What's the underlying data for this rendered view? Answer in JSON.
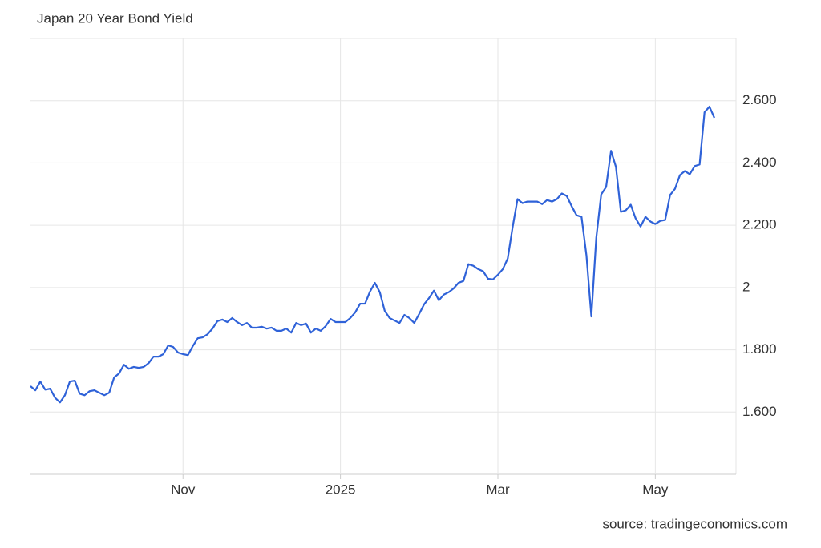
{
  "chart_data": {
    "type": "line",
    "title": "Japan 20 Year Bond Yield",
    "source": "source: tradingeconomics.com",
    "color": "#2f62d8",
    "grid": true,
    "ylim": [
      1.4,
      2.8
    ],
    "yticks": [
      {
        "value": 1.6,
        "label": "1.600"
      },
      {
        "value": 1.8,
        "label": "1.800"
      },
      2,
      {
        "value": 2.2,
        "label": "2.200"
      },
      {
        "value": 2.4,
        "label": "2.400"
      },
      {
        "value": 2.6,
        "label": "2.600"
      }
    ],
    "categories": [
      null,
      null,
      null,
      null,
      null,
      null,
      null,
      null,
      null,
      null,
      null,
      null,
      null,
      null,
      null,
      null,
      null,
      null,
      null,
      null,
      null,
      null,
      null,
      null,
      null,
      null,
      null,
      null,
      null,
      null,
      null,
      "Nov",
      null,
      null,
      null,
      null,
      null,
      null,
      null,
      null,
      null,
      null,
      null,
      null,
      null,
      null,
      null,
      null,
      null,
      null,
      null,
      null,
      null,
      null,
      null,
      null,
      null,
      null,
      null,
      null,
      null,
      null,
      null,
      "2025",
      null,
      null,
      null,
      null,
      null,
      null,
      null,
      null,
      null,
      null,
      null,
      null,
      null,
      null,
      null,
      null,
      null,
      null,
      null,
      null,
      null,
      null,
      null,
      null,
      null,
      null,
      null,
      null,
      null,
      null,
      null,
      "Mar",
      null,
      null,
      null,
      null,
      null,
      null,
      null,
      null,
      null,
      null,
      null,
      null,
      null,
      null,
      null,
      null,
      null,
      null,
      null,
      null,
      null,
      null,
      null,
      null,
      null,
      null,
      null,
      null,
      null,
      null,
      null,
      "May",
      null,
      null,
      null,
      null,
      null,
      null,
      null,
      null,
      null,
      null,
      null,
      null
    ],
    "values": [
      1.683,
      1.67,
      1.698,
      1.672,
      1.675,
      1.646,
      1.631,
      1.654,
      1.698,
      1.701,
      1.659,
      1.654,
      1.667,
      1.67,
      1.662,
      1.654,
      1.662,
      1.711,
      1.724,
      1.752,
      1.739,
      1.745,
      1.742,
      1.745,
      1.757,
      1.778,
      1.778,
      1.786,
      1.814,
      1.809,
      1.791,
      1.786,
      1.783,
      1.812,
      1.837,
      1.84,
      1.85,
      1.868,
      1.892,
      1.897,
      1.889,
      1.902,
      1.889,
      1.879,
      1.886,
      1.871,
      1.871,
      1.874,
      1.868,
      1.871,
      1.861,
      1.861,
      1.868,
      1.855,
      1.886,
      1.879,
      1.884,
      1.855,
      1.868,
      1.861,
      1.876,
      1.899,
      1.889,
      1.889,
      1.889,
      1.902,
      1.92,
      1.948,
      1.948,
      1.987,
      2.015,
      1.985,
      1.925,
      1.902,
      1.894,
      1.886,
      1.912,
      1.902,
      1.886,
      1.915,
      1.946,
      1.966,
      1.99,
      1.959,
      1.977,
      1.985,
      1.997,
      2.015,
      2.021,
      2.075,
      2.07,
      2.059,
      2.052,
      2.028,
      2.026,
      2.041,
      2.059,
      2.093,
      2.194,
      2.284,
      2.271,
      2.276,
      2.276,
      2.276,
      2.268,
      2.281,
      2.276,
      2.284,
      2.302,
      2.294,
      2.261,
      2.232,
      2.227,
      2.103,
      1.907,
      2.16,
      2.299,
      2.323,
      2.439,
      2.387,
      2.243,
      2.248,
      2.266,
      2.222,
      2.196,
      2.227,
      2.212,
      2.204,
      2.214,
      2.217,
      2.297,
      2.317,
      2.361,
      2.374,
      2.364,
      2.39,
      2.395,
      2.563,
      2.581,
      2.545
    ]
  }
}
